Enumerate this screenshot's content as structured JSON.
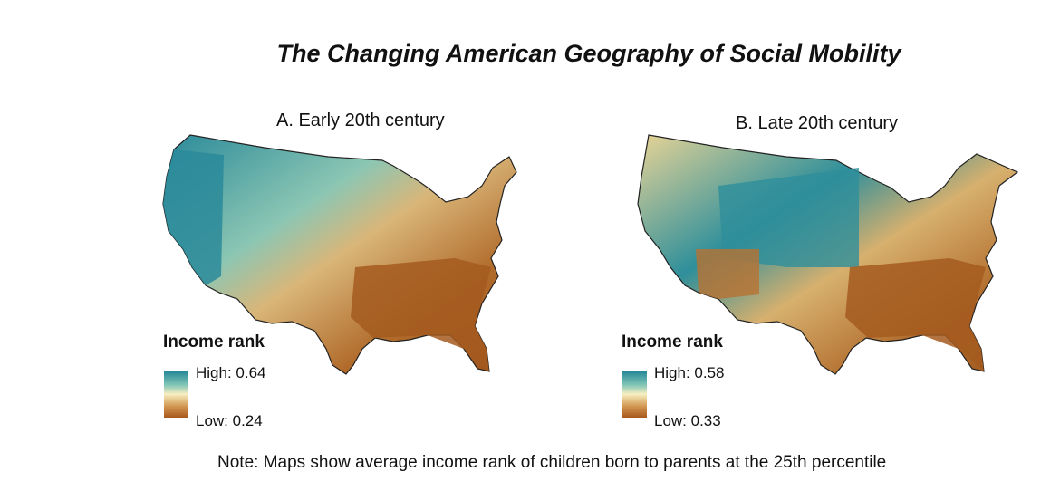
{
  "title": "The Changing American Geography of Social Mobility",
  "panels": [
    {
      "id": "A",
      "title": "A. Early 20th century",
      "legend": {
        "title": "Income rank",
        "high": "High: 0.64",
        "low": "Low: 0.24"
      }
    },
    {
      "id": "B",
      "title": "B. Late 20th century",
      "legend": {
        "title": "Income rank",
        "high": "High: 0.58",
        "low": "Low: 0.33"
      }
    }
  ],
  "note": "Note: Maps show average income rank of children born to parents at the 25th percentile",
  "colors": {
    "high": "#1f8496",
    "mid": "#f7efc2",
    "low": "#a8581c"
  }
}
